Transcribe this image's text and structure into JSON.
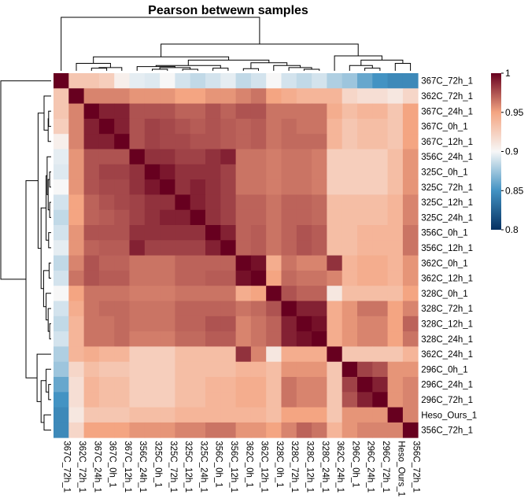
{
  "chart_data": {
    "type": "heatmap",
    "title": "Pearson betwewn samples",
    "row_labels": [
      "367C_72h_1",
      "362C_72h_1",
      "367C_24h_1",
      "367C_0h_1",
      "367C_12h_1",
      "356C_24h_1",
      "325C_0h_1",
      "325C_72h_1",
      "325C_12h_1",
      "325C_24h_1",
      "356C_0h_1",
      "356C_12h_1",
      "362C_0h_1",
      "362C_12h_1",
      "328C_0h_1",
      "328C_72h_1",
      "328C_12h_1",
      "328C_24h_1",
      "362C_24h_1",
      "296C_0h_1",
      "296C_24h_1",
      "296C_72h_1",
      "Heso_Ours_1",
      "356C_72h_1"
    ],
    "col_labels": [
      "367C_72h_1",
      "362C_72h_1",
      "367C_24h_1",
      "367C_0h_1",
      "367C_12h_1",
      "356C_24h_1",
      "325C_0h_1",
      "325C_72h_1",
      "325C_12h_1",
      "325C_24h_1",
      "356C_0h_1",
      "356C_12h_1",
      "362C_0h_1",
      "362C_12h_1",
      "328C_0h_1",
      "328C_72h_1",
      "328C_12h_1",
      "328C_24h_1",
      "362C_24h_1",
      "296C_0h_1",
      "296C_24h_1",
      "296C_72h_1",
      "Heso_Ours_1",
      "356C_72h_1"
    ],
    "colorbar": {
      "min": 0.8,
      "max": 1,
      "ticks": [
        "0.8",
        "0.85",
        "0.9",
        "0.95",
        "1"
      ],
      "tick_values": [
        0.8,
        0.85,
        0.9,
        0.95,
        1.0
      ]
    },
    "colors": {
      "low": "#053061",
      "low_mid": "#4393c3",
      "mid": "#f7f7f7",
      "high_mid": "#f4a582",
      "high": "#67001f"
    },
    "values": [
      [
        1.0,
        0.93,
        0.93,
        0.925,
        0.905,
        0.895,
        0.893,
        0.9,
        0.89,
        0.885,
        0.89,
        0.895,
        0.885,
        0.89,
        0.9,
        0.89,
        0.885,
        0.89,
        0.88,
        0.875,
        0.86,
        0.85,
        0.845,
        0.845
      ],
      [
        0.93,
        1.0,
        0.96,
        0.96,
        0.96,
        0.955,
        0.955,
        0.955,
        0.95,
        0.95,
        0.955,
        0.955,
        0.96,
        0.965,
        0.95,
        0.945,
        0.94,
        0.94,
        0.94,
        0.92,
        0.915,
        0.915,
        0.91,
        0.92
      ],
      [
        0.93,
        0.96,
        1.0,
        0.99,
        0.99,
        0.975,
        0.975,
        0.975,
        0.97,
        0.97,
        0.975,
        0.97,
        0.975,
        0.975,
        0.965,
        0.965,
        0.965,
        0.965,
        0.945,
        0.935,
        0.94,
        0.94,
        0.93,
        0.95
      ],
      [
        0.925,
        0.96,
        0.99,
        1.0,
        0.99,
        0.975,
        0.98,
        0.978,
        0.975,
        0.972,
        0.975,
        0.972,
        0.97,
        0.972,
        0.965,
        0.968,
        0.965,
        0.965,
        0.94,
        0.93,
        0.935,
        0.935,
        0.93,
        0.95
      ],
      [
        0.905,
        0.96,
        0.99,
        0.99,
        1.0,
        0.975,
        0.98,
        0.978,
        0.978,
        0.975,
        0.975,
        0.972,
        0.97,
        0.972,
        0.965,
        0.968,
        0.968,
        0.968,
        0.94,
        0.93,
        0.935,
        0.935,
        0.93,
        0.95
      ],
      [
        0.895,
        0.955,
        0.975,
        0.975,
        0.975,
        1.0,
        0.985,
        0.985,
        0.98,
        0.98,
        0.985,
        0.99,
        0.965,
        0.965,
        0.962,
        0.965,
        0.965,
        0.962,
        0.925,
        0.925,
        0.925,
        0.925,
        0.935,
        0.955
      ],
      [
        0.893,
        0.955,
        0.975,
        0.98,
        0.98,
        0.985,
        1.0,
        0.993,
        0.985,
        0.985,
        0.985,
        0.98,
        0.965,
        0.965,
        0.962,
        0.965,
        0.965,
        0.962,
        0.925,
        0.925,
        0.925,
        0.925,
        0.935,
        0.955
      ],
      [
        0.9,
        0.955,
        0.975,
        0.978,
        0.978,
        0.985,
        0.993,
        1.0,
        0.985,
        0.99,
        0.985,
        0.98,
        0.965,
        0.965,
        0.962,
        0.965,
        0.965,
        0.962,
        0.925,
        0.925,
        0.925,
        0.925,
        0.935,
        0.955
      ],
      [
        0.89,
        0.95,
        0.97,
        0.975,
        0.978,
        0.98,
        0.985,
        0.985,
        1.0,
        0.99,
        0.985,
        0.98,
        0.97,
        0.97,
        0.965,
        0.97,
        0.97,
        0.968,
        0.935,
        0.935,
        0.935,
        0.935,
        0.94,
        0.96
      ],
      [
        0.885,
        0.95,
        0.97,
        0.972,
        0.975,
        0.98,
        0.985,
        0.99,
        0.99,
        1.0,
        0.985,
        0.98,
        0.97,
        0.97,
        0.965,
        0.97,
        0.97,
        0.968,
        0.935,
        0.935,
        0.935,
        0.935,
        0.94,
        0.96
      ],
      [
        0.89,
        0.955,
        0.975,
        0.975,
        0.975,
        0.985,
        0.985,
        0.985,
        0.985,
        0.985,
        1.0,
        0.99,
        0.97,
        0.972,
        0.965,
        0.97,
        0.975,
        0.972,
        0.935,
        0.935,
        0.94,
        0.94,
        0.94,
        0.965
      ],
      [
        0.895,
        0.955,
        0.97,
        0.972,
        0.972,
        0.99,
        0.98,
        0.98,
        0.98,
        0.98,
        0.99,
        1.0,
        0.97,
        0.972,
        0.965,
        0.97,
        0.975,
        0.972,
        0.935,
        0.935,
        0.94,
        0.94,
        0.94,
        0.965
      ],
      [
        0.885,
        0.96,
        0.975,
        0.97,
        0.97,
        0.965,
        0.965,
        0.965,
        0.97,
        0.97,
        0.97,
        0.97,
        1.0,
        0.995,
        0.945,
        0.965,
        0.96,
        0.96,
        0.985,
        0.94,
        0.945,
        0.945,
        0.94,
        0.955
      ],
      [
        0.89,
        0.965,
        0.975,
        0.972,
        0.972,
        0.965,
        0.965,
        0.965,
        0.97,
        0.97,
        0.972,
        0.972,
        0.995,
        1.0,
        0.95,
        0.968,
        0.965,
        0.965,
        0.96,
        0.94,
        0.945,
        0.945,
        0.94,
        0.955
      ],
      [
        0.9,
        0.95,
        0.965,
        0.965,
        0.965,
        0.962,
        0.962,
        0.962,
        0.965,
        0.965,
        0.965,
        0.965,
        0.945,
        0.95,
        1.0,
        0.975,
        0.97,
        0.97,
        0.91,
        0.935,
        0.935,
        0.935,
        0.935,
        0.95
      ],
      [
        0.89,
        0.945,
        0.965,
        0.968,
        0.968,
        0.965,
        0.965,
        0.965,
        0.97,
        0.97,
        0.97,
        0.97,
        0.965,
        0.968,
        0.975,
        1.0,
        0.99,
        0.99,
        0.945,
        0.955,
        0.965,
        0.965,
        0.95,
        0.96
      ],
      [
        0.885,
        0.94,
        0.965,
        0.965,
        0.968,
        0.965,
        0.965,
        0.965,
        0.97,
        0.97,
        0.975,
        0.975,
        0.96,
        0.965,
        0.97,
        0.99,
        1.0,
        0.995,
        0.945,
        0.955,
        0.96,
        0.96,
        0.95,
        0.97
      ],
      [
        0.89,
        0.94,
        0.965,
        0.965,
        0.968,
        0.962,
        0.962,
        0.962,
        0.968,
        0.968,
        0.972,
        0.972,
        0.96,
        0.965,
        0.97,
        0.99,
        0.995,
        1.0,
        0.945,
        0.955,
        0.96,
        0.96,
        0.95,
        0.965
      ],
      [
        0.88,
        0.94,
        0.945,
        0.94,
        0.94,
        0.925,
        0.925,
        0.925,
        0.935,
        0.935,
        0.935,
        0.935,
        0.985,
        0.96,
        0.91,
        0.945,
        0.945,
        0.945,
        1.0,
        0.93,
        0.93,
        0.93,
        0.93,
        0.94
      ],
      [
        0.875,
        0.92,
        0.935,
        0.93,
        0.93,
        0.925,
        0.925,
        0.925,
        0.935,
        0.935,
        0.935,
        0.935,
        0.94,
        0.94,
        0.935,
        0.955,
        0.955,
        0.955,
        0.93,
        1.0,
        0.98,
        0.975,
        0.955,
        0.955
      ],
      [
        0.86,
        0.915,
        0.94,
        0.935,
        0.935,
        0.925,
        0.925,
        0.925,
        0.935,
        0.935,
        0.94,
        0.94,
        0.945,
        0.945,
        0.935,
        0.965,
        0.96,
        0.96,
        0.93,
        0.98,
        1.0,
        0.99,
        0.955,
        0.96
      ],
      [
        0.85,
        0.915,
        0.94,
        0.935,
        0.935,
        0.925,
        0.925,
        0.925,
        0.935,
        0.935,
        0.94,
        0.94,
        0.945,
        0.945,
        0.935,
        0.965,
        0.96,
        0.96,
        0.93,
        0.975,
        0.99,
        1.0,
        0.955,
        0.96
      ],
      [
        0.845,
        0.91,
        0.93,
        0.93,
        0.93,
        0.935,
        0.935,
        0.935,
        0.94,
        0.94,
        0.94,
        0.94,
        0.94,
        0.94,
        0.935,
        0.95,
        0.95,
        0.95,
        0.93,
        0.955,
        0.955,
        0.955,
        1.0,
        0.96
      ],
      [
        0.845,
        0.92,
        0.95,
        0.95,
        0.95,
        0.955,
        0.955,
        0.955,
        0.96,
        0.96,
        0.965,
        0.965,
        0.955,
        0.955,
        0.95,
        0.96,
        0.97,
        0.965,
        0.94,
        0.955,
        0.96,
        0.96,
        0.96,
        1.0
      ]
    ],
    "grid": false,
    "legend": "right"
  }
}
